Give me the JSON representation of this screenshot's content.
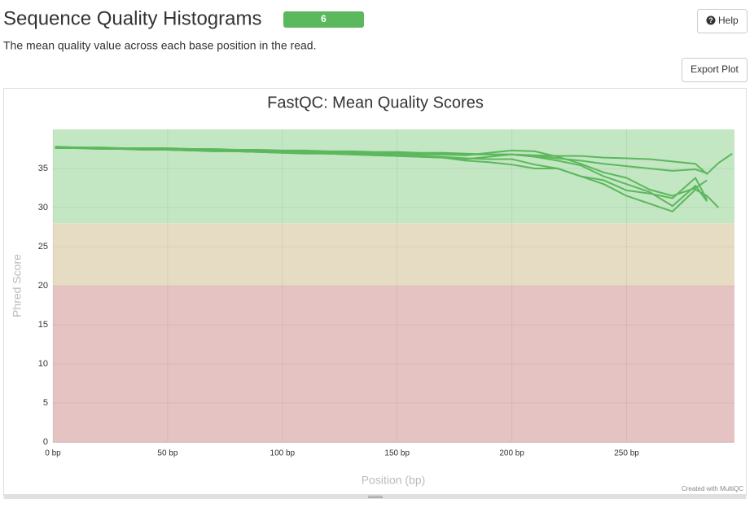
{
  "header": {
    "title": "Sequence Quality Histograms",
    "badge": "6",
    "help": "Help"
  },
  "description": "The mean quality value across each base position in the read.",
  "export_button": "Export Plot",
  "chart_data": {
    "type": "line",
    "title": "FastQC: Mean Quality Scores",
    "xlabel": "Position (bp)",
    "ylabel": "Phred Score",
    "credit": "Created with MultiQC",
    "xlim": [
      0,
      297
    ],
    "ylim": [
      0,
      40
    ],
    "xticks": [
      {
        "value": 0,
        "label": "0 bp"
      },
      {
        "value": 50,
        "label": "50 bp"
      },
      {
        "value": 100,
        "label": "100 bp"
      },
      {
        "value": 150,
        "label": "150 bp"
      },
      {
        "value": 200,
        "label": "200 bp"
      },
      {
        "value": 250,
        "label": "250 bp"
      }
    ],
    "yticks": [
      0,
      5,
      10,
      15,
      20,
      25,
      30,
      35
    ],
    "grid": true,
    "bands": [
      {
        "from": 28,
        "to": 40,
        "color": "#c3e6c3"
      },
      {
        "from": 20,
        "to": 28,
        "color": "#e6dcc3"
      },
      {
        "from": 0,
        "to": 20,
        "color": "#e6c3c3"
      }
    ],
    "x": [
      1,
      10,
      20,
      30,
      40,
      50,
      60,
      70,
      80,
      90,
      100,
      110,
      120,
      130,
      140,
      150,
      160,
      170,
      180,
      190,
      200,
      210,
      220,
      230,
      240,
      250,
      260,
      270,
      280,
      285,
      290,
      296
    ],
    "series": [
      {
        "color": "#5cb85c",
        "values": [
          37.7,
          37.7,
          37.7,
          37.6,
          37.6,
          37.6,
          37.5,
          37.5,
          37.4,
          37.4,
          37.3,
          37.3,
          37.2,
          37.2,
          37.1,
          37.1,
          37.0,
          37.0,
          36.9,
          36.8,
          36.8,
          36.7,
          36.6,
          36.6,
          36.4,
          36.3,
          36.2,
          35.9,
          35.6,
          34.3,
          35.7,
          36.9
        ]
      },
      {
        "color": "#5cb85c",
        "values": [
          37.8,
          37.7,
          37.6,
          37.6,
          37.5,
          37.5,
          37.4,
          37.4,
          37.3,
          37.3,
          37.2,
          37.2,
          37.1,
          37.1,
          37.0,
          37.0,
          36.9,
          36.9,
          36.8,
          36.8,
          36.8,
          36.6,
          36.3,
          36.0,
          35.6,
          35.3,
          35.0,
          34.7,
          34.9,
          34.4,
          null,
          null
        ]
      },
      {
        "color": "#5cb85c",
        "values": [
          37.7,
          37.6,
          37.6,
          37.6,
          37.5,
          37.4,
          37.4,
          37.3,
          37.3,
          37.2,
          37.2,
          37.1,
          37.0,
          37.0,
          36.9,
          36.9,
          36.8,
          36.8,
          36.7,
          37.0,
          37.3,
          37.2,
          36.5,
          35.6,
          34.5,
          33.8,
          32.3,
          31.5,
          32.5,
          33.5,
          null,
          null
        ]
      },
      {
        "color": "#5cb85c",
        "values": [
          37.6,
          37.6,
          37.5,
          37.5,
          37.4,
          37.4,
          37.3,
          37.3,
          37.2,
          37.1,
          37.1,
          37.0,
          36.9,
          36.9,
          36.8,
          36.7,
          36.6,
          36.5,
          36.3,
          36.2,
          36.2,
          35.5,
          35.0,
          34.0,
          33.0,
          31.5,
          30.5,
          29.5,
          32.3,
          31.5,
          30.0,
          null
        ]
      },
      {
        "color": "#5cb85c",
        "values": [
          37.7,
          37.7,
          37.6,
          37.5,
          37.5,
          37.4,
          37.3,
          37.3,
          37.2,
          37.1,
          37.0,
          37.0,
          36.9,
          36.8,
          36.7,
          36.6,
          36.5,
          36.4,
          36.0,
          35.8,
          35.5,
          35.0,
          35.0,
          34.0,
          33.5,
          32.2,
          31.8,
          31.2,
          33.8,
          31.0,
          null,
          null
        ]
      },
      {
        "color": "#5cb85c",
        "values": [
          37.6,
          37.6,
          37.6,
          37.5,
          37.4,
          37.4,
          37.3,
          37.2,
          37.2,
          37.1,
          37.0,
          36.9,
          36.9,
          36.8,
          36.7,
          36.6,
          36.5,
          36.4,
          36.2,
          36.5,
          36.8,
          36.5,
          36.0,
          35.4,
          34.0,
          33.0,
          32.0,
          30.2,
          32.8,
          30.8,
          null,
          null
        ]
      }
    ]
  }
}
